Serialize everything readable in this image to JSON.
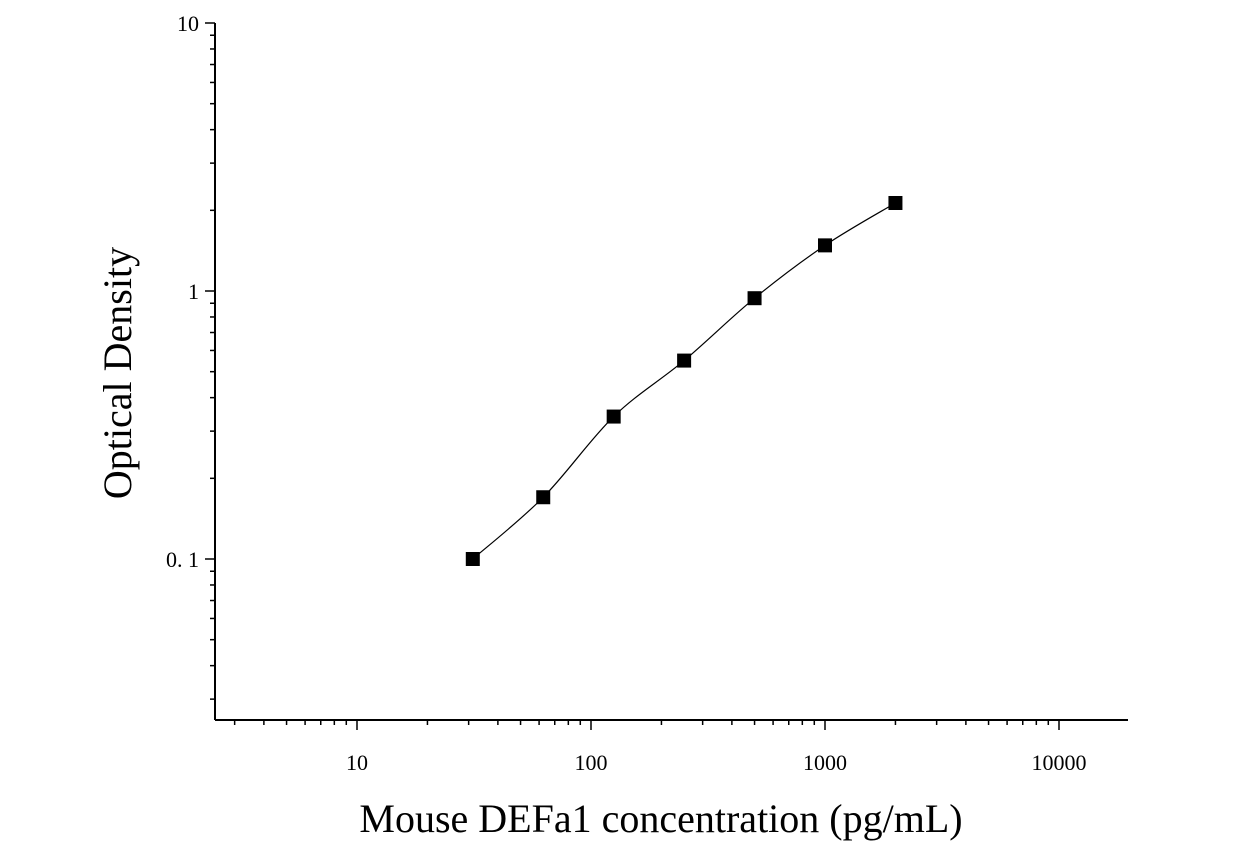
{
  "chart_data": {
    "type": "scatter",
    "title": "",
    "xlabel": "Mouse DEFa1 concentration (pg/mL)",
    "ylabel": "Optical Density",
    "xscale": "log",
    "yscale": "log",
    "xlim": [
      2.5,
      20000
    ],
    "ylim": [
      0.025,
      10
    ],
    "x_ticks": [
      10,
      100,
      1000,
      10000
    ],
    "x_tick_labels": [
      "10",
      "100",
      "1000",
      "10000"
    ],
    "y_ticks": [
      0.1,
      1,
      10
    ],
    "y_tick_labels": [
      "0. 1",
      "1",
      "10"
    ],
    "grid": false,
    "legend": "none",
    "marker": "square",
    "fit_line": "smooth curve through points",
    "colors": {
      "marker": "#000000",
      "line": "#000000",
      "axis": "#000000"
    },
    "series": [
      {
        "x": [
          31.25,
          62.5,
          125,
          250,
          500,
          1000,
          2000
        ],
        "y": [
          0.1,
          0.17,
          0.34,
          0.55,
          0.94,
          1.48,
          2.13
        ]
      }
    ]
  }
}
